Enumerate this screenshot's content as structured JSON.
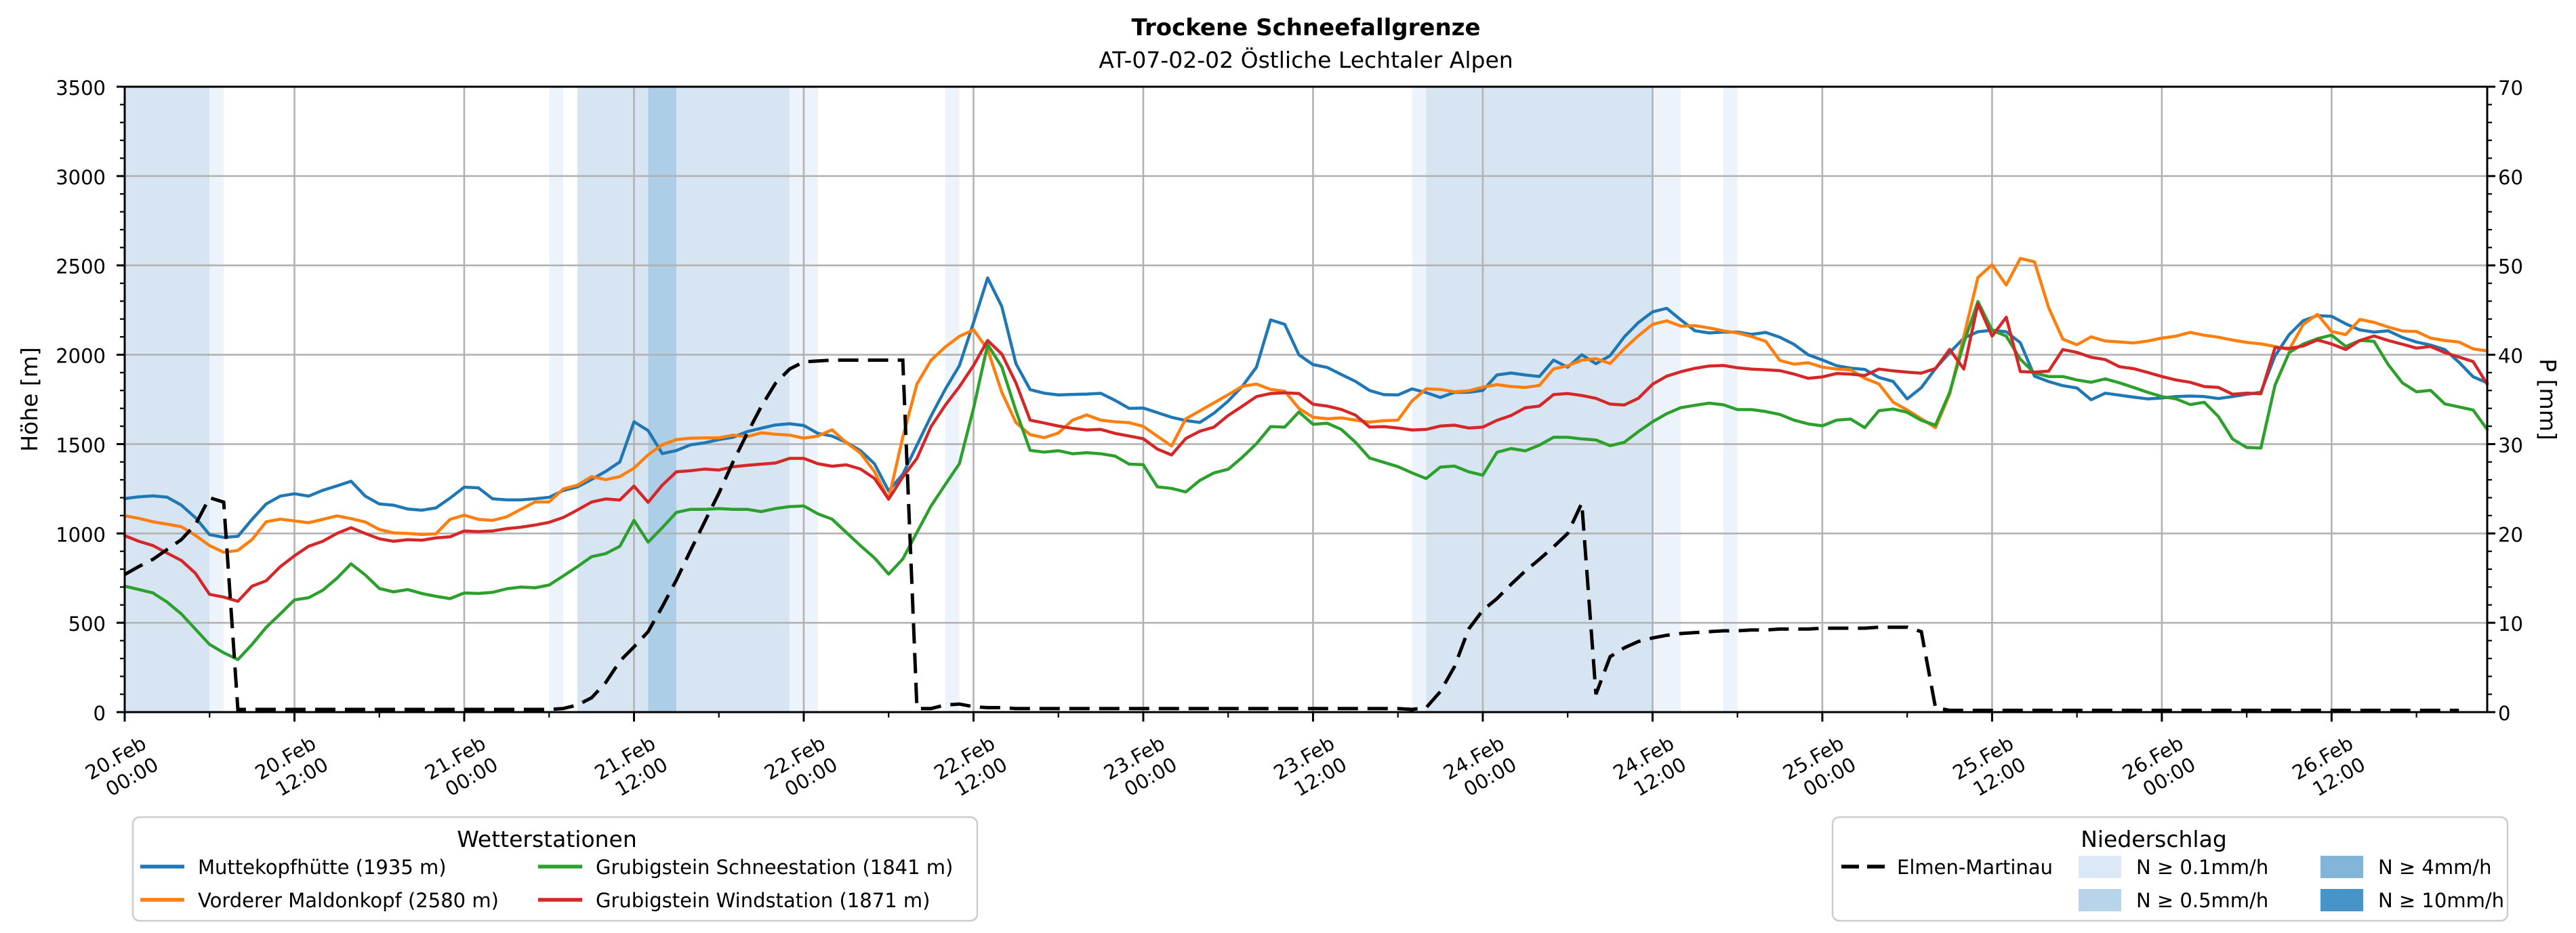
{
  "title": "Trockene Schneefallgrenze",
  "subtitle": "AT-07-02-02 Östliche Lechtaler Alpen",
  "chart_data": {
    "type": "line",
    "x_axis": {
      "unit": "hours since 20.Feb 00:00",
      "range_hours": [
        0,
        167
      ],
      "major_tick_every_hours": 12,
      "minor_tick_every_hours": 6,
      "tick_labels": [
        {
          "h": 0,
          "date": "20.Feb",
          "time": "00:00"
        },
        {
          "h": 12,
          "date": "20.Feb",
          "time": "12:00"
        },
        {
          "h": 24,
          "date": "21.Feb",
          "time": "00:00"
        },
        {
          "h": 36,
          "date": "21.Feb",
          "time": "12:00"
        },
        {
          "h": 48,
          "date": "22.Feb",
          "time": "00:00"
        },
        {
          "h": 60,
          "date": "22.Feb",
          "time": "12:00"
        },
        {
          "h": 72,
          "date": "23.Feb",
          "time": "00:00"
        },
        {
          "h": 84,
          "date": "23.Feb",
          "time": "12:00"
        },
        {
          "h": 96,
          "date": "24.Feb",
          "time": "00:00"
        },
        {
          "h": 108,
          "date": "24.Feb",
          "time": "12:00"
        },
        {
          "h": 120,
          "date": "25.Feb",
          "time": "00:00"
        },
        {
          "h": 132,
          "date": "25.Feb",
          "time": "12:00"
        },
        {
          "h": 144,
          "date": "26.Feb",
          "time": "00:00"
        },
        {
          "h": 156,
          "date": "26.Feb",
          "time": "12:00"
        }
      ]
    },
    "y_left": {
      "label": "Höhe [m]",
      "lim": [
        0,
        3500
      ],
      "major_ticks": [
        0,
        500,
        1000,
        1500,
        2000,
        2500,
        3000,
        3500
      ],
      "minor_tick_step": 100,
      "grid": true
    },
    "y_right": {
      "label": "P [mm]",
      "lim": [
        0,
        70
      ],
      "major_ticks": [
        0,
        10,
        20,
        30,
        40,
        50,
        60,
        70
      ],
      "minor_tick_step": 2
    },
    "series": [
      {
        "name": "Muttekopfhütte (1935 m)",
        "color": "#1f77b4",
        "axis": "left",
        "values": [
          1195,
          1205,
          1210,
          1203,
          1159,
          1088,
          993,
          978,
          984,
          1079,
          1165,
          1209,
          1222,
          1209,
          1241,
          1266,
          1292,
          1209,
          1165,
          1158,
          1137,
          1130,
          1143,
          1198,
          1259,
          1255,
          1194,
          1188,
          1188,
          1194,
          1202,
          1240,
          1260,
          1302,
          1347,
          1400,
          1625,
          1576,
          1447,
          1464,
          1496,
          1507,
          1525,
          1538,
          1570,
          1589,
          1607,
          1614,
          1604,
          1560,
          1545,
          1510,
          1464,
          1390,
          1238,
          1331,
          1494,
          1657,
          1806,
          1939,
          2180,
          2430,
          2270,
          1950,
          1805,
          1785,
          1775,
          1778,
          1780,
          1784,
          1745,
          1700,
          1702,
          1676,
          1650,
          1632,
          1621,
          1673,
          1741,
          1823,
          1930,
          2195,
          2170,
          2000,
          1945,
          1929,
          1889,
          1851,
          1800,
          1777,
          1775,
          1809,
          1788,
          1761,
          1790,
          1790,
          1800,
          1887,
          1898,
          1887,
          1878,
          1970,
          1930,
          2000,
          1950,
          1995,
          2100,
          2180,
          2240,
          2260,
          2195,
          2134,
          2122,
          2127,
          2127,
          2114,
          2125,
          2098,
          2058,
          2000,
          1971,
          1939,
          1925,
          1918,
          1873,
          1851,
          1753,
          1816,
          1923,
          2012,
          2093,
          2129,
          2137,
          2129,
          2067,
          1880,
          1850,
          1827,
          1814,
          1748,
          1785,
          1774,
          1763,
          1753,
          1758,
          1766,
          1769,
          1766,
          1755,
          1766,
          1779,
          1790,
          1994,
          2113,
          2191,
          2219,
          2215,
          2173,
          2139,
          2127,
          2134,
          2097,
          2071,
          2054,
          2029,
          1958,
          1877,
          1843
        ]
      },
      {
        "name": "Vorderer Maldonkopf (2580 m)",
        "color": "#ff7f0e",
        "axis": "left",
        "values": [
          1099,
          1084,
          1065,
          1052,
          1038,
          989,
          932,
          894,
          905,
          966,
          1065,
          1080,
          1070,
          1060,
          1079,
          1098,
          1083,
          1064,
          1022,
          1003,
          1000,
          994,
          998,
          1079,
          1102,
          1079,
          1073,
          1093,
          1135,
          1176,
          1176,
          1249,
          1270,
          1318,
          1301,
          1318,
          1365,
          1440,
          1496,
          1525,
          1533,
          1535,
          1535,
          1550,
          1542,
          1563,
          1555,
          1550,
          1533,
          1545,
          1580,
          1509,
          1450,
          1346,
          1192,
          1539,
          1836,
          1969,
          2043,
          2103,
          2140,
          2030,
          1790,
          1620,
          1553,
          1536,
          1562,
          1634,
          1663,
          1634,
          1625,
          1620,
          1599,
          1544,
          1489,
          1641,
          1686,
          1731,
          1776,
          1823,
          1836,
          1806,
          1796,
          1700,
          1650,
          1642,
          1647,
          1634,
          1623,
          1631,
          1634,
          1742,
          1809,
          1806,
          1793,
          1798,
          1819,
          1833,
          1822,
          1817,
          1828,
          1921,
          1938,
          1970,
          1978,
          1951,
          2034,
          2106,
          2170,
          2190,
          2160,
          2163,
          2150,
          2134,
          2122,
          2102,
          2075,
          1968,
          1947,
          1955,
          1931,
          1920,
          1916,
          1868,
          1837,
          1735,
          1691,
          1641,
          1592,
          1780,
          2102,
          2432,
          2504,
          2390,
          2539,
          2520,
          2263,
          2087,
          2056,
          2100,
          2077,
          2072,
          2066,
          2077,
          2093,
          2104,
          2125,
          2109,
          2098,
          2082,
          2069,
          2061,
          2046,
          2029,
          2170,
          2226,
          2130,
          2113,
          2198,
          2181,
          2155,
          2133,
          2130,
          2093,
          2080,
          2071,
          2033,
          2021
        ]
      },
      {
        "name": "Grubigstein Schneestation (1841 m)",
        "color": "#2ca02c",
        "axis": "left",
        "values": [
          705,
          686,
          667,
          616,
          550,
          464,
          379,
          332,
          294,
          379,
          474,
          550,
          628,
          640,
          682,
          749,
          830,
          768,
          692,
          673,
          686,
          664,
          648,
          635,
          667,
          664,
          670,
          690,
          700,
          696,
          711,
          762,
          814,
          870,
          887,
          928,
          1073,
          951,
          1032,
          1118,
          1135,
          1135,
          1139,
          1135,
          1135,
          1122,
          1139,
          1150,
          1154,
          1110,
          1080,
          1006,
          932,
          863,
          772,
          857,
          1006,
          1154,
          1273,
          1390,
          1700,
          2057,
          1932,
          1686,
          1465,
          1455,
          1463,
          1446,
          1452,
          1446,
          1433,
          1388,
          1385,
          1261,
          1252,
          1232,
          1297,
          1339,
          1359,
          1426,
          1502,
          1598,
          1595,
          1680,
          1611,
          1617,
          1582,
          1510,
          1422,
          1398,
          1374,
          1339,
          1307,
          1371,
          1377,
          1345,
          1326,
          1454,
          1475,
          1462,
          1494,
          1538,
          1538,
          1529,
          1523,
          1491,
          1510,
          1570,
          1625,
          1670,
          1704,
          1717,
          1729,
          1720,
          1693,
          1693,
          1682,
          1666,
          1634,
          1613,
          1602,
          1634,
          1640,
          1592,
          1687,
          1696,
          1678,
          1633,
          1606,
          1789,
          2066,
          2298,
          2137,
          2104,
          1975,
          1897,
          1878,
          1878,
          1859,
          1846,
          1865,
          1843,
          1817,
          1790,
          1766,
          1753,
          1721,
          1734,
          1654,
          1528,
          1481,
          1478,
          1830,
          2012,
          2060,
          2090,
          2110,
          2046,
          2080,
          2075,
          1945,
          1843,
          1793,
          1801,
          1725,
          1708,
          1691,
          1582
        ]
      },
      {
        "name": "Grubigstein Windstation (1871 m)",
        "color": "#d62728",
        "axis": "left",
        "values": [
          988,
          956,
          932,
          890,
          849,
          777,
          659,
          644,
          620,
          705,
          735,
          814,
          875,
          928,
          956,
          1000,
          1032,
          1000,
          970,
          956,
          965,
          962,
          975,
          981,
          1014,
          1010,
          1014,
          1027,
          1035,
          1047,
          1062,
          1089,
          1131,
          1176,
          1193,
          1187,
          1265,
          1174,
          1270,
          1345,
          1351,
          1360,
          1355,
          1373,
          1381,
          1388,
          1394,
          1420,
          1420,
          1390,
          1376,
          1384,
          1361,
          1308,
          1192,
          1316,
          1420,
          1598,
          1717,
          1821,
          1940,
          2080,
          2004,
          1842,
          1634,
          1618,
          1601,
          1588,
          1579,
          1582,
          1560,
          1545,
          1530,
          1472,
          1439,
          1531,
          1572,
          1595,
          1660,
          1712,
          1766,
          1783,
          1787,
          1783,
          1723,
          1713,
          1694,
          1662,
          1595,
          1598,
          1590,
          1579,
          1582,
          1601,
          1606,
          1590,
          1595,
          1633,
          1660,
          1703,
          1713,
          1777,
          1783,
          1772,
          1756,
          1724,
          1719,
          1756,
          1835,
          1880,
          1905,
          1924,
          1937,
          1940,
          1927,
          1920,
          1916,
          1911,
          1892,
          1868,
          1876,
          1895,
          1892,
          1884,
          1920,
          1910,
          1903,
          1897,
          1923,
          2030,
          1920,
          2284,
          2104,
          2210,
          1906,
          1903,
          1908,
          2029,
          2013,
          1986,
          1973,
          1933,
          1922,
          1901,
          1878,
          1859,
          1846,
          1822,
          1817,
          1779,
          1785,
          1782,
          2040,
          2035,
          2049,
          2083,
          2060,
          2029,
          2080,
          2105,
          2080,
          2059,
          2037,
          2046,
          2012,
          1987,
          1962,
          1835
        ]
      }
    ],
    "precipitation_line": {
      "name": "Elmen-Martinau",
      "color": "#000000",
      "style": "dashed",
      "axis": "right",
      "values": [
        15.4,
        16.3,
        17.1,
        18.2,
        19.3,
        21.0,
        24.0,
        23.5,
        0.3,
        0.3,
        0.3,
        0.3,
        0.3,
        0.3,
        0.3,
        0.3,
        0.3,
        0.3,
        0.3,
        0.3,
        0.3,
        0.3,
        0.3,
        0.3,
        0.3,
        0.3,
        0.3,
        0.3,
        0.3,
        0.3,
        0.3,
        0.4,
        0.8,
        1.6,
        3.3,
        5.7,
        7.3,
        9.0,
        11.8,
        14.8,
        18.1,
        21.3,
        24.5,
        28.0,
        31.2,
        34.2,
        36.8,
        38.4,
        39.2,
        39.3,
        39.4,
        39.4,
        39.4,
        39.4,
        39.4,
        39.4,
        0.4,
        0.4,
        0.8,
        0.9,
        0.6,
        0.5,
        0.5,
        0.4,
        0.4,
        0.4,
        0.4,
        0.4,
        0.4,
        0.4,
        0.4,
        0.4,
        0.4,
        0.4,
        0.4,
        0.4,
        0.4,
        0.4,
        0.4,
        0.4,
        0.4,
        0.4,
        0.4,
        0.4,
        0.4,
        0.4,
        0.4,
        0.4,
        0.4,
        0.4,
        0.4,
        0.3,
        0.5,
        2.3,
        5.1,
        9.3,
        11.4,
        12.7,
        14.3,
        15.8,
        17.1,
        18.5,
        20.0,
        23.4,
        2.0,
        6.2,
        7.2,
        7.9,
        8.3,
        8.6,
        8.8,
        8.9,
        9.0,
        9.1,
        9.1,
        9.2,
        9.2,
        9.3,
        9.3,
        9.3,
        9.4,
        9.4,
        9.4,
        9.4,
        9.5,
        9.5,
        9.5,
        9.0,
        0.5,
        0.2,
        0.2,
        0.2,
        0.2,
        0.2,
        0.2,
        0.2,
        0.2,
        0.2,
        0.2,
        0.2,
        0.2,
        0.2,
        0.2,
        0.2,
        0.2,
        0.2,
        0.2,
        0.2,
        0.2,
        0.2,
        0.2,
        0.2,
        0.2,
        0.2,
        0.2,
        0.2,
        0.2,
        0.2,
        0.2,
        0.2,
        0.2,
        0.2,
        0.2,
        0.2,
        0.2,
        0.2
      ]
    },
    "precipitation_bands": [
      {
        "from_h": 0,
        "to_h": 6,
        "level": "N ≥ 0.5mm/h"
      },
      {
        "from_h": 6,
        "to_h": 7,
        "level": "N ≥ 0.1mm/h"
      },
      {
        "from_h": 30,
        "to_h": 31,
        "level": "N ≥ 0.1mm/h"
      },
      {
        "from_h": 32,
        "to_h": 37,
        "level": "N ≥ 0.5mm/h"
      },
      {
        "from_h": 37,
        "to_h": 39,
        "level": "N ≥ 4mm/h"
      },
      {
        "from_h": 39,
        "to_h": 47,
        "level": "N ≥ 0.5mm/h"
      },
      {
        "from_h": 47,
        "to_h": 49,
        "level": "N ≥ 0.1mm/h"
      },
      {
        "from_h": 58,
        "to_h": 59,
        "level": "N ≥ 0.1mm/h"
      },
      {
        "from_h": 91,
        "to_h": 92,
        "level": "N ≥ 0.1mm/h"
      },
      {
        "from_h": 92,
        "to_h": 108,
        "level": "N ≥ 0.5mm/h"
      },
      {
        "from_h": 108,
        "to_h": 110,
        "level": "N ≥ 0.1mm/h"
      },
      {
        "from_h": 113,
        "to_h": 114,
        "level": "N ≥ 0.1mm/h"
      }
    ],
    "band_levels": [
      {
        "label": "N ≥ 0.1mm/h",
        "plot_color": "#edf3fb",
        "legend_color": "#dbe9f6"
      },
      {
        "label": "N ≥ 0.5mm/h",
        "plot_color": "#d7e5f3",
        "legend_color": "#b7d4ea"
      },
      {
        "label": "N ≥ 4mm/h",
        "plot_color": "#accee6",
        "legend_color": "#82b5d8"
      },
      {
        "label": "N ≥ 10mm/h",
        "plot_color": "#65a8d2",
        "legend_color": "#4795c8"
      }
    ],
    "grid_color": "#b2b2b2",
    "line_width": 4.5
  },
  "legend_stations": {
    "title": "Wetterstationen",
    "entries_col1": [
      {
        "label": "Muttekopfhütte (1935 m)",
        "color": "#1f77b4"
      },
      {
        "label": "Vorderer Maldonkopf (2580 m)",
        "color": "#ff7f0e"
      }
    ],
    "entries_col2": [
      {
        "label": "Grubigstein Schneestation (1841 m)",
        "color": "#2ca02c"
      },
      {
        "label": "Grubigstein Windstation (1871 m)",
        "color": "#d62728"
      }
    ]
  },
  "legend_precipitation": {
    "title": "Niederschlag",
    "line_entry": {
      "label": "Elmen-Martinau",
      "color": "#000000",
      "style": "dashed"
    },
    "patch_entries_col1": [
      {
        "label": "N ≥ 0.1mm/h",
        "color": "#dbe9f6"
      },
      {
        "label": "N ≥ 0.5mm/h",
        "color": "#b7d4ea"
      }
    ],
    "patch_entries_col2": [
      {
        "label": "N ≥ 4mm/h",
        "color": "#82b5d8"
      },
      {
        "label": "N ≥ 10mm/h",
        "color": "#4795c8"
      }
    ]
  }
}
